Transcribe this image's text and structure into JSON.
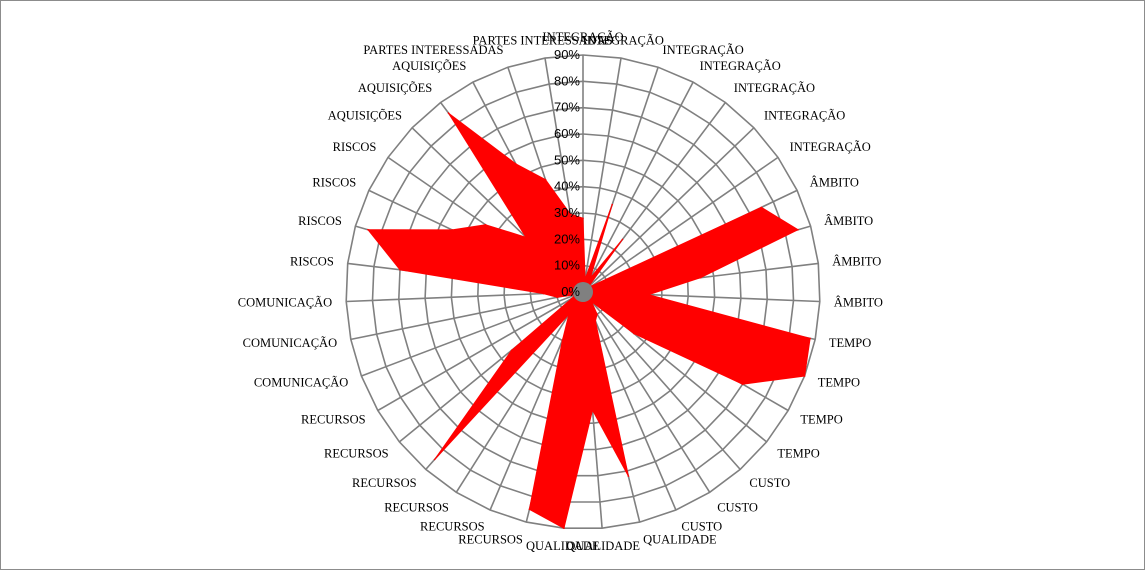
{
  "chart_data": {
    "type": "radar",
    "title": "",
    "colors": {
      "fill": "#ff0000",
      "grid": "#808080",
      "hub": "#808080"
    },
    "ylim": [
      0,
      0.9
    ],
    "tick_labels": [
      "0%",
      "10%",
      "20%",
      "30%",
      "40%",
      "50%",
      "60%",
      "70%",
      "80%",
      "90%"
    ],
    "categories": [
      "INTEGRAÇÃO",
      "INTEGRAÇÃO",
      "INTEGRAÇÃO",
      "INTEGRAÇÃO",
      "INTEGRAÇÃO",
      "INTEGRAÇÃO",
      "INTEGRAÇÃO",
      "ÂMBITO",
      "ÂMBITO",
      "ÂMBITO",
      "ÂMBITO",
      "TEMPO",
      "TEMPO",
      "TEMPO",
      "TEMPO",
      "CUSTO",
      "CUSTO",
      "CUSTO",
      "QUALIDADE",
      "QUALIDADE",
      "QUALIDADE",
      "RECURSOS",
      "RECURSOS",
      "RECURSOS",
      "RECURSOS",
      "RECURSOS",
      "RECURSOS",
      "COMUNICAÇÃO",
      "COMUNICAÇÃO",
      "COMUNICAÇÃO",
      "RISCOS",
      "RISCOS",
      "RISCOS",
      "RISCOS",
      "AQUISIÇÕES",
      "AQUISIÇÕES",
      "AQUISIÇÕES",
      "PARTES INTERESSADAS",
      "PARTES INTERESSADAS"
    ],
    "series": [
      {
        "values": [
          0.28,
          0.05,
          0.35,
          0.06,
          0.25,
          0.03,
          0.04,
          0.75,
          0.85,
          0.45,
          0.25,
          0.88,
          0.9,
          0.7,
          0.25,
          0.05,
          0.1,
          0.12,
          0.72,
          0.45,
          0.9,
          0.85,
          0.2,
          0.1,
          0.85,
          0.35,
          0.05,
          0.03,
          0.1,
          0.15,
          0.7,
          0.85,
          0.55,
          0.45,
          0.3,
          0.85,
          0.55,
          0.45,
          0.3
        ]
      }
    ]
  }
}
